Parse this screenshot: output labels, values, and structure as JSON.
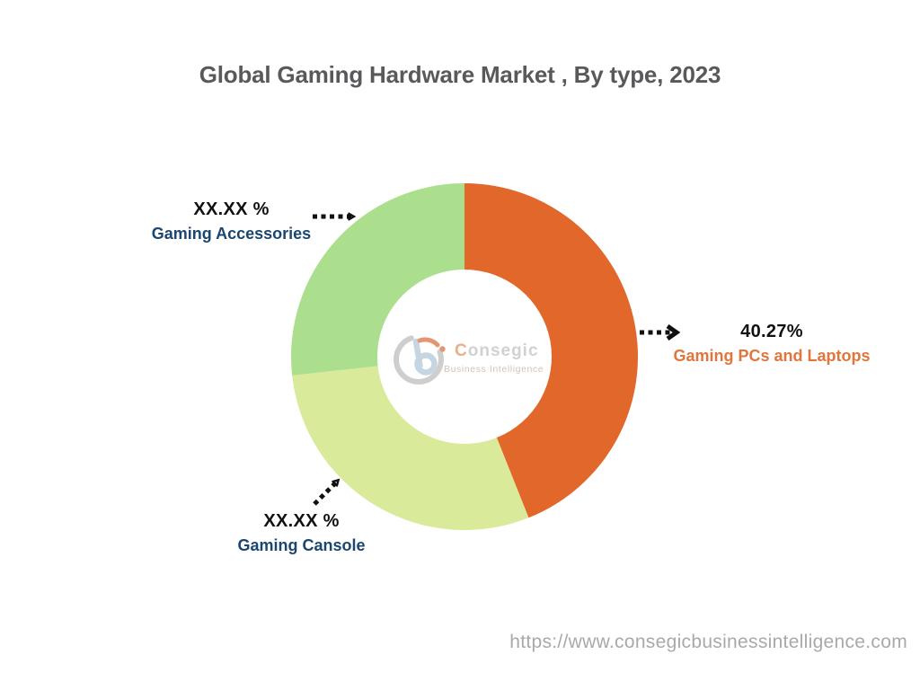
{
  "title": "Global Gaming Hardware Market , By type, 2023",
  "chart_data": {
    "type": "pie",
    "subtype": "donut",
    "title": "Global Gaming Hardware Market , By type, 2023",
    "legend_position": "none",
    "start_angle_deg": 0,
    "direction": "clockwise",
    "segments": [
      {
        "label": "Gaming PCs and Laptops",
        "value_label": "40.27%",
        "value_pct": 40.27,
        "visual_fraction": 0.4397,
        "color": "#E2672A",
        "label_color": "#E0763C"
      },
      {
        "label": "Gaming Cansole",
        "value_label": "XX.XX %",
        "value_pct": null,
        "visual_fraction": 0.2931,
        "color": "#D9EA9B",
        "label_color": "#1B4670"
      },
      {
        "label": "Gaming Accessories",
        "value_label": "XX.XX %",
        "value_pct": null,
        "visual_fraction": 0.2672,
        "color": "#ACDF8D",
        "label_color": "#1B4670"
      }
    ]
  },
  "logo": {
    "brand_initial": "C",
    "brand_rest": "onsegic",
    "tagline": "Business Intelligence"
  },
  "footer": {
    "url": "https://www.consegicbusinessintelligence.com"
  },
  "colors": {
    "title_text": "#58595B",
    "value_text": "#111111",
    "navy_label": "#1B4670",
    "orange_label": "#E0763C",
    "url_text": "#A9A9A9",
    "arrow": "#111111",
    "background": "#FFFFFF"
  }
}
